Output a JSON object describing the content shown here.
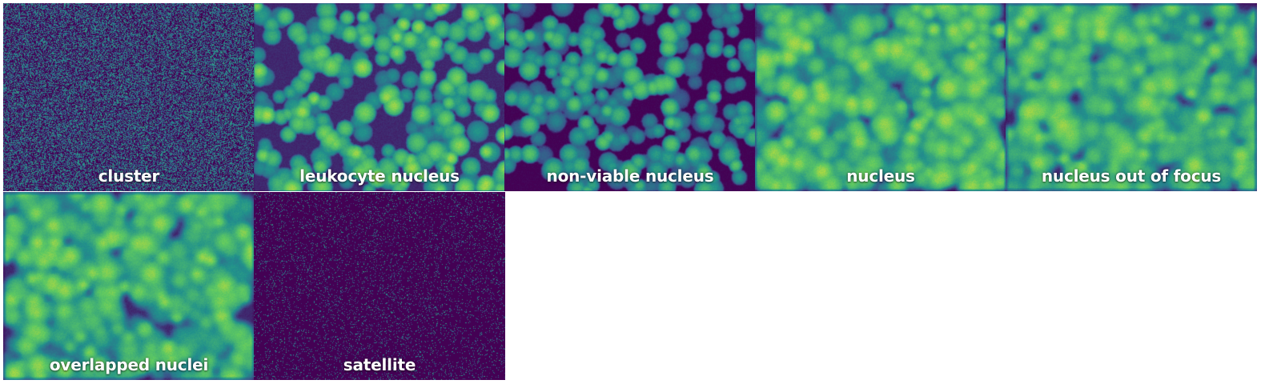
{
  "colormap": [
    "#440154",
    "#3b528b",
    "#21918c",
    "#5ec962",
    "#fde725"
  ],
  "tiles": [
    {
      "label": "cluster",
      "texture": "salt-noise",
      "brightness": 0.22
    },
    {
      "label": "leukocyte nucleus",
      "texture": "round-cells",
      "brightness": 0.45
    },
    {
      "label": "non-viable nucleus",
      "texture": "dark-gaps-cells",
      "brightness": 0.4
    },
    {
      "label": "nucleus",
      "texture": "dense-blur",
      "brightness": 0.55
    },
    {
      "label": "nucleus out of focus",
      "texture": "soft-blur",
      "brightness": 0.45
    },
    {
      "label": "overlapped nuclei",
      "texture": "blotchy-blur",
      "brightness": 0.45
    },
    {
      "label": "satellite",
      "texture": "sparse-dots",
      "brightness": 0.08
    }
  ]
}
